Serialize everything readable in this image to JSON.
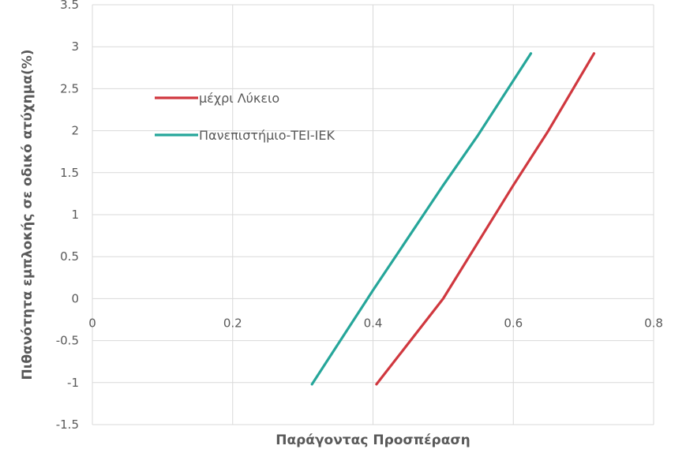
{
  "chart_data": {
    "type": "line",
    "title": "",
    "xlabel": "Παράγοντας Προσπέραση",
    "ylabel": "Πιθανότητα εμπλοκής σε οδικό ατύχημα(%)",
    "xlim": [
      0,
      0.8
    ],
    "ylim": [
      -1.5,
      3.5
    ],
    "x_ticks": [
      0,
      0.2,
      0.4,
      0.6,
      0.8
    ],
    "x_tick_labels": [
      "0",
      "0.2",
      "0.4",
      "0.6",
      "0.8"
    ],
    "y_ticks": [
      -1.5,
      -1,
      -0.5,
      0,
      0.5,
      1,
      1.5,
      2,
      2.5,
      3,
      3.5
    ],
    "y_tick_labels": [
      "-1.5",
      "-1",
      "-0.5",
      "0",
      "0.5",
      "1",
      "1.5",
      "2",
      "2.5",
      "3",
      "3.5"
    ],
    "grid": true,
    "legend_position": "top-left",
    "series": [
      {
        "name": "μέχρι Λύκειο",
        "color": "#d0383f",
        "points": [
          [
            0.405,
            -1.02
          ],
          [
            0.5,
            0.0
          ],
          [
            0.6,
            1.35
          ],
          [
            0.65,
            2.0
          ],
          [
            0.715,
            2.92
          ]
        ]
      },
      {
        "name": "Πανεπιστήμιο-ΤΕΙ-ΙΕΚ",
        "color": "#26a69a",
        "points": [
          [
            0.313,
            -1.02
          ],
          [
            0.4,
            0.1
          ],
          [
            0.5,
            1.35
          ],
          [
            0.55,
            1.95
          ],
          [
            0.625,
            2.92
          ]
        ]
      }
    ]
  }
}
